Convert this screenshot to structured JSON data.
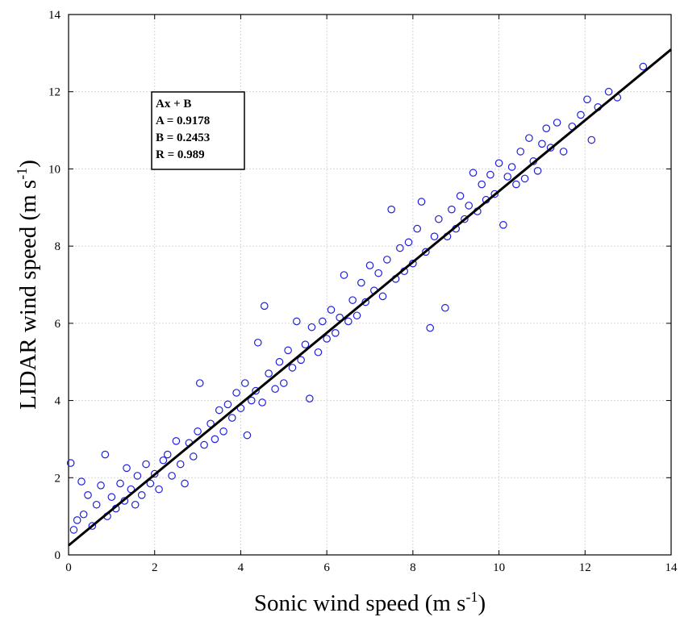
{
  "chart_data": {
    "type": "scatter",
    "title": "",
    "xlabel": {
      "main": "Sonic wind speed (m s",
      "sup": "-1",
      "end": ")"
    },
    "ylabel": {
      "main": "LIDAR wind speed (m s",
      "sup": "-1",
      "end": ")"
    },
    "xlim": [
      0,
      14
    ],
    "ylim": [
      0,
      14
    ],
    "xticks": [
      "0",
      "2",
      "4",
      "6",
      "8",
      "10",
      "12",
      "14"
    ],
    "yticks": [
      "0",
      "2",
      "4",
      "6",
      "8",
      "10",
      "12",
      "14"
    ],
    "grid": true,
    "marker": "open-circle",
    "marker_color": "#1f1fe0",
    "line_color": "#000000",
    "fit": {
      "equation": "Ax + B",
      "A": 0.9178,
      "B": 0.2453,
      "R": 0.989
    },
    "fit_label": {
      "equation": "Ax + B",
      "A_text": "A = 0.9178",
      "B_text": "B = 0.2453",
      "R_text": "R = 0.989",
      "placement": "top-left"
    },
    "series": [
      {
        "points": [
          [
            0.05,
            2.38
          ],
          [
            0.12,
            0.65
          ],
          [
            0.2,
            0.9
          ],
          [
            0.3,
            1.9
          ],
          [
            0.35,
            1.05
          ],
          [
            0.45,
            1.55
          ],
          [
            0.55,
            0.75
          ],
          [
            0.65,
            1.3
          ],
          [
            0.75,
            1.8
          ],
          [
            0.85,
            2.6
          ],
          [
            0.9,
            1.0
          ],
          [
            1.0,
            1.5
          ],
          [
            1.1,
            1.2
          ],
          [
            1.2,
            1.85
          ],
          [
            1.3,
            1.4
          ],
          [
            1.35,
            2.25
          ],
          [
            1.45,
            1.7
          ],
          [
            1.55,
            1.3
          ],
          [
            1.6,
            2.05
          ],
          [
            1.7,
            1.55
          ],
          [
            1.8,
            2.35
          ],
          [
            1.9,
            1.85
          ],
          [
            2.0,
            2.1
          ],
          [
            2.1,
            1.7
          ],
          [
            2.2,
            2.45
          ],
          [
            2.3,
            2.6
          ],
          [
            2.4,
            2.05
          ],
          [
            2.5,
            2.95
          ],
          [
            2.6,
            2.35
          ],
          [
            2.7,
            1.85
          ],
          [
            2.8,
            2.9
          ],
          [
            2.9,
            2.55
          ],
          [
            3.0,
            3.2
          ],
          [
            3.05,
            4.45
          ],
          [
            3.15,
            2.85
          ],
          [
            3.3,
            3.4
          ],
          [
            3.4,
            3.0
          ],
          [
            3.5,
            3.75
          ],
          [
            3.6,
            3.2
          ],
          [
            3.7,
            3.9
          ],
          [
            3.8,
            3.55
          ],
          [
            3.9,
            4.2
          ],
          [
            4.0,
            3.8
          ],
          [
            4.1,
            4.45
          ],
          [
            4.15,
            3.1
          ],
          [
            4.25,
            4.0
          ],
          [
            4.35,
            4.25
          ],
          [
            4.4,
            5.5
          ],
          [
            4.5,
            3.95
          ],
          [
            4.55,
            6.45
          ],
          [
            4.65,
            4.7
          ],
          [
            4.8,
            4.3
          ],
          [
            4.9,
            5.0
          ],
          [
            5.0,
            4.45
          ],
          [
            5.1,
            5.3
          ],
          [
            5.2,
            4.85
          ],
          [
            5.3,
            6.05
          ],
          [
            5.4,
            5.05
          ],
          [
            5.5,
            5.45
          ],
          [
            5.6,
            4.05
          ],
          [
            5.65,
            5.9
          ],
          [
            5.8,
            5.25
          ],
          [
            5.9,
            6.05
          ],
          [
            6.0,
            5.6
          ],
          [
            6.1,
            6.35
          ],
          [
            6.2,
            5.75
          ],
          [
            6.3,
            6.15
          ],
          [
            6.4,
            7.25
          ],
          [
            6.5,
            6.05
          ],
          [
            6.6,
            6.6
          ],
          [
            6.7,
            6.2
          ],
          [
            6.8,
            7.05
          ],
          [
            6.9,
            6.55
          ],
          [
            7.0,
            7.5
          ],
          [
            7.1,
            6.85
          ],
          [
            7.2,
            7.3
          ],
          [
            7.3,
            6.7
          ],
          [
            7.4,
            7.65
          ],
          [
            7.5,
            8.95
          ],
          [
            7.6,
            7.15
          ],
          [
            7.7,
            7.95
          ],
          [
            7.8,
            7.35
          ],
          [
            7.9,
            8.1
          ],
          [
            8.0,
            7.55
          ],
          [
            8.1,
            8.45
          ],
          [
            8.2,
            9.15
          ],
          [
            8.3,
            7.85
          ],
          [
            8.4,
            5.88
          ],
          [
            8.5,
            8.25
          ],
          [
            8.6,
            8.7
          ],
          [
            8.75,
            6.4
          ],
          [
            8.8,
            8.25
          ],
          [
            8.9,
            8.95
          ],
          [
            9.0,
            8.45
          ],
          [
            9.1,
            9.3
          ],
          [
            9.2,
            8.7
          ],
          [
            9.3,
            9.05
          ],
          [
            9.4,
            9.9
          ],
          [
            9.5,
            8.9
          ],
          [
            9.6,
            9.6
          ],
          [
            9.7,
            9.2
          ],
          [
            9.8,
            9.85
          ],
          [
            9.9,
            9.35
          ],
          [
            10.0,
            10.15
          ],
          [
            10.1,
            8.55
          ],
          [
            10.2,
            9.8
          ],
          [
            10.3,
            10.05
          ],
          [
            10.4,
            9.6
          ],
          [
            10.5,
            10.45
          ],
          [
            10.6,
            9.75
          ],
          [
            10.7,
            10.8
          ],
          [
            10.8,
            10.2
          ],
          [
            10.9,
            9.95
          ],
          [
            11.0,
            10.65
          ],
          [
            11.1,
            11.05
          ],
          [
            11.2,
            10.55
          ],
          [
            11.35,
            11.2
          ],
          [
            11.5,
            10.45
          ],
          [
            11.7,
            11.1
          ],
          [
            11.9,
            11.4
          ],
          [
            12.05,
            11.8
          ],
          [
            12.15,
            10.75
          ],
          [
            12.3,
            11.6
          ],
          [
            12.55,
            12.0
          ],
          [
            12.75,
            11.85
          ],
          [
            13.35,
            12.65
          ]
        ]
      }
    ]
  }
}
